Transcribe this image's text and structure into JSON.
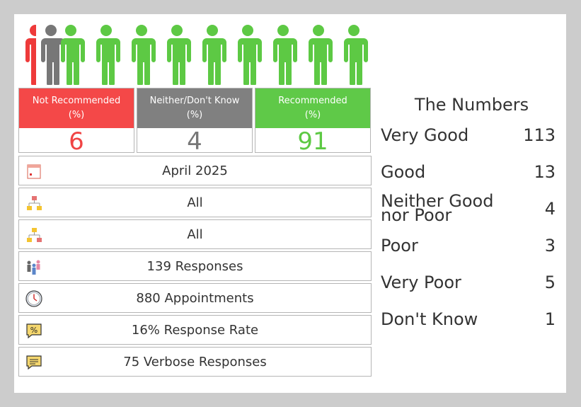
{
  "people": {
    "colors": {
      "not_recommended": "#ee3a3a",
      "neither": "#777777",
      "recommended": "#5dc944"
    }
  },
  "scores": [
    {
      "label_line1": "Not Recommended",
      "label_line2": "(%)",
      "value": "6",
      "header_color": "#f44848",
      "value_color": "#f04444"
    },
    {
      "label_line1": "Neither/Don't Know",
      "label_line2": "(%)",
      "value": "4",
      "header_color": "#808080",
      "value_color": "#777777"
    },
    {
      "label_line1": "Recommended",
      "label_line2": "(%)",
      "value": "91",
      "header_color": "#5fc948",
      "value_color": "#5dc944"
    }
  ],
  "info": {
    "period": "April 2025",
    "filter1": "All",
    "filter2": "All",
    "responses": "139 Responses",
    "appointments": "880 Appointments",
    "response_rate": "16% Response Rate",
    "verbose": "75 Verbose Responses"
  },
  "numbers": {
    "title": "The Numbers",
    "rows": [
      {
        "label": "Very Good",
        "value": "113"
      },
      {
        "label": "Good",
        "value": "13"
      },
      {
        "label": "Neither Good nor Poor",
        "value": "4"
      },
      {
        "label": "Poor",
        "value": "3"
      },
      {
        "label": "Very Poor",
        "value": "5"
      },
      {
        "label": "Don't Know",
        "value": "1"
      }
    ]
  }
}
